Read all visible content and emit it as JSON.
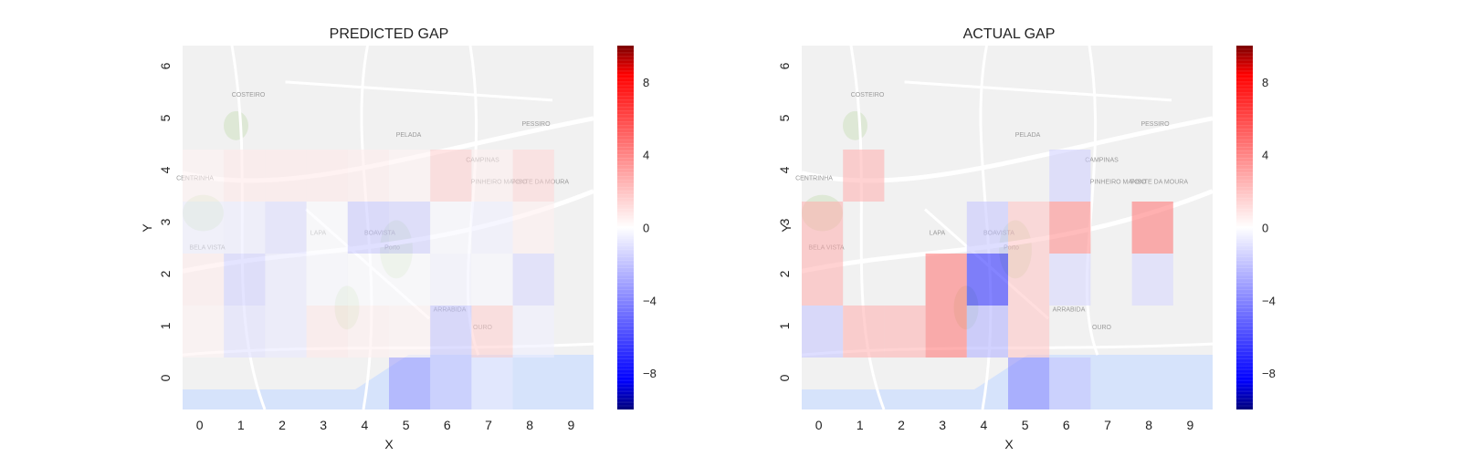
{
  "colorscale": {
    "min": -10,
    "max": 10,
    "neg_color": "#0000ff",
    "mid_color": "#ffffff",
    "pos_color": "#ff0000",
    "ticks": [
      8,
      4,
      0,
      -4,
      -8
    ],
    "tick_labels": [
      "8",
      "4",
      "0",
      "−4",
      "−8"
    ]
  },
  "background": {
    "description_free": true,
    "land_color": "#f1f1f1",
    "road_color": "#ffffff",
    "water_color": "#d6e3fb",
    "park_color": "#d9e6cf",
    "place_labels": [
      "COSTEIRO",
      "PELADA",
      "PESSIRO",
      "CAMPINAS",
      "PINHEIRO MANSO",
      "FONTE DA MOURA",
      "CENTRINHA",
      "LAPA",
      "BOAVISTA",
      "Porto",
      "ARRABIDA",
      "OURO",
      "BELA VISTA"
    ]
  },
  "chart_data": [
    {
      "type": "heatmap",
      "title": "PREDICTED GAP",
      "xlabel": "X",
      "ylabel": "Y",
      "x_ticks": [
        "0",
        "1",
        "2",
        "3",
        "4",
        "5",
        "6",
        "7",
        "8",
        "9"
      ],
      "y_ticks": [
        "0",
        "1",
        "2",
        "3",
        "4",
        "5",
        "6"
      ],
      "cells": [
        {
          "x": 0,
          "y": 0,
          "v": 0
        },
        {
          "x": 1,
          "y": 0,
          "v": 0
        },
        {
          "x": 2,
          "y": 0,
          "v": 0
        },
        {
          "x": 3,
          "y": 0,
          "v": 0
        },
        {
          "x": 4,
          "y": 0,
          "v": 0
        },
        {
          "x": 5,
          "y": 0,
          "v": -2.5
        },
        {
          "x": 6,
          "y": 0,
          "v": -1.5
        },
        {
          "x": 7,
          "y": 0,
          "v": -0.5
        },
        {
          "x": 8,
          "y": 0,
          "v": 0
        },
        {
          "x": 9,
          "y": 0,
          "v": 0
        },
        {
          "x": 0,
          "y": 1,
          "v": 0.3
        },
        {
          "x": 1,
          "y": 1,
          "v": -0.8
        },
        {
          "x": 2,
          "y": 1,
          "v": -0.6
        },
        {
          "x": 3,
          "y": 1,
          "v": 0.6
        },
        {
          "x": 4,
          "y": 1,
          "v": 0.4
        },
        {
          "x": 5,
          "y": 1,
          "v": 0.3
        },
        {
          "x": 6,
          "y": 1,
          "v": -1.5
        },
        {
          "x": 7,
          "y": 1,
          "v": 1.2
        },
        {
          "x": 8,
          "y": 1,
          "v": -0.4
        },
        {
          "x": 9,
          "y": 1,
          "v": 0
        },
        {
          "x": 0,
          "y": 2,
          "v": 0.5
        },
        {
          "x": 1,
          "y": 2,
          "v": -1.2
        },
        {
          "x": 2,
          "y": 2,
          "v": -0.6
        },
        {
          "x": 3,
          "y": 2,
          "v": -0.2
        },
        {
          "x": 4,
          "y": 2,
          "v": -0.1
        },
        {
          "x": 5,
          "y": 2,
          "v": -0.1
        },
        {
          "x": 6,
          "y": 2,
          "v": -0.3
        },
        {
          "x": 7,
          "y": 2,
          "v": -0.2
        },
        {
          "x": 8,
          "y": 2,
          "v": -1.0
        },
        {
          "x": 9,
          "y": 2,
          "v": 0
        },
        {
          "x": 0,
          "y": 3,
          "v": -0.4
        },
        {
          "x": 1,
          "y": 3,
          "v": -0.5
        },
        {
          "x": 2,
          "y": 3,
          "v": -0.9
        },
        {
          "x": 3,
          "y": 3,
          "v": -0.1
        },
        {
          "x": 4,
          "y": 3,
          "v": -1.4
        },
        {
          "x": 5,
          "y": 3,
          "v": -1.2
        },
        {
          "x": 6,
          "y": 3,
          "v": -0.2
        },
        {
          "x": 7,
          "y": 3,
          "v": -0.4
        },
        {
          "x": 8,
          "y": 3,
          "v": 0.4
        },
        {
          "x": 9,
          "y": 3,
          "v": 0
        },
        {
          "x": 0,
          "y": 4,
          "v": 0.3
        },
        {
          "x": 1,
          "y": 4,
          "v": 0.6
        },
        {
          "x": 2,
          "y": 4,
          "v": 0.6
        },
        {
          "x": 3,
          "y": 4,
          "v": 0.6
        },
        {
          "x": 4,
          "y": 4,
          "v": 0.5
        },
        {
          "x": 5,
          "y": 4,
          "v": 0.3
        },
        {
          "x": 6,
          "y": 4,
          "v": 1.2
        },
        {
          "x": 7,
          "y": 4,
          "v": 0.4
        },
        {
          "x": 8,
          "y": 4,
          "v": 1.0
        },
        {
          "x": 9,
          "y": 4,
          "v": 0
        }
      ]
    },
    {
      "type": "heatmap",
      "title": "ACTUAL GAP",
      "xlabel": "X",
      "ylabel": "Y",
      "x_ticks": [
        "0",
        "1",
        "2",
        "3",
        "4",
        "5",
        "6",
        "7",
        "8",
        "9"
      ],
      "y_ticks": [
        "0",
        "1",
        "2",
        "3",
        "4",
        "5",
        "6"
      ],
      "cells": [
        {
          "x": 0,
          "y": 0,
          "v": 0
        },
        {
          "x": 1,
          "y": 0,
          "v": 0
        },
        {
          "x": 2,
          "y": 0,
          "v": 0
        },
        {
          "x": 3,
          "y": 0,
          "v": 0
        },
        {
          "x": 4,
          "y": 0,
          "v": 0
        },
        {
          "x": 5,
          "y": 0,
          "v": -3.0
        },
        {
          "x": 6,
          "y": 0,
          "v": -1.5
        },
        {
          "x": 7,
          "y": 0,
          "v": 0
        },
        {
          "x": 8,
          "y": 0,
          "v": 0
        },
        {
          "x": 9,
          "y": 0,
          "v": 0
        },
        {
          "x": 0,
          "y": 1,
          "v": -1.5
        },
        {
          "x": 1,
          "y": 1,
          "v": 2.0
        },
        {
          "x": 2,
          "y": 1,
          "v": 2.0
        },
        {
          "x": 3,
          "y": 1,
          "v": 3.5
        },
        {
          "x": 4,
          "y": 1,
          "v": -2.0
        },
        {
          "x": 5,
          "y": 1,
          "v": 1.5
        },
        {
          "x": 6,
          "y": 1,
          "v": 0
        },
        {
          "x": 7,
          "y": 1,
          "v": 0
        },
        {
          "x": 8,
          "y": 1,
          "v": 0
        },
        {
          "x": 9,
          "y": 1,
          "v": 0
        },
        {
          "x": 0,
          "y": 2,
          "v": 2.0
        },
        {
          "x": 1,
          "y": 2,
          "v": 0
        },
        {
          "x": 2,
          "y": 2,
          "v": 0
        },
        {
          "x": 3,
          "y": 2,
          "v": 3.5
        },
        {
          "x": 4,
          "y": 2,
          "v": -5.5
        },
        {
          "x": 5,
          "y": 2,
          "v": 1.5
        },
        {
          "x": 6,
          "y": 2,
          "v": -1.0
        },
        {
          "x": 7,
          "y": 2,
          "v": 0
        },
        {
          "x": 8,
          "y": 2,
          "v": -1.0
        },
        {
          "x": 9,
          "y": 2,
          "v": 0
        },
        {
          "x": 0,
          "y": 3,
          "v": 2.0
        },
        {
          "x": 1,
          "y": 3,
          "v": 0
        },
        {
          "x": 2,
          "y": 3,
          "v": 0
        },
        {
          "x": 3,
          "y": 3,
          "v": 0
        },
        {
          "x": 4,
          "y": 3,
          "v": -1.5
        },
        {
          "x": 5,
          "y": 3,
          "v": 1.5
        },
        {
          "x": 6,
          "y": 3,
          "v": 3.0
        },
        {
          "x": 7,
          "y": 3,
          "v": 0
        },
        {
          "x": 8,
          "y": 3,
          "v": 3.5
        },
        {
          "x": 9,
          "y": 3,
          "v": 0
        },
        {
          "x": 0,
          "y": 4,
          "v": 0
        },
        {
          "x": 1,
          "y": 4,
          "v": 2.0
        },
        {
          "x": 2,
          "y": 4,
          "v": 0
        },
        {
          "x": 3,
          "y": 4,
          "v": 0
        },
        {
          "x": 4,
          "y": 4,
          "v": 0
        },
        {
          "x": 5,
          "y": 4,
          "v": 0
        },
        {
          "x": 6,
          "y": 4,
          "v": -1.2
        },
        {
          "x": 7,
          "y": 4,
          "v": 0
        },
        {
          "x": 8,
          "y": 4,
          "v": 0
        },
        {
          "x": 9,
          "y": 4,
          "v": 0
        }
      ]
    }
  ]
}
